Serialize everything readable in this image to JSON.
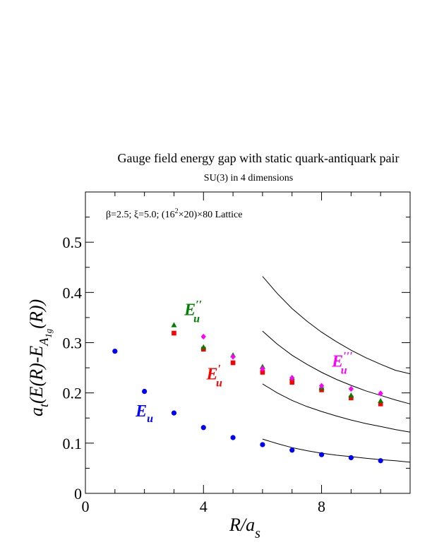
{
  "chart_data": {
    "type": "scatter",
    "title": "Gauge field energy gap with static quark-antiquark pair",
    "subtitle": "SU(3) in 4 dimensions",
    "annotation": {
      "prefix": "β=2.5;  ξ=5.0; (16",
      "sup": "2",
      "suffix": "×20)×80 Lattice"
    },
    "xlabel": {
      "main": "R/a",
      "sub": "s"
    },
    "ylabel": {
      "pre": "a",
      "pre_sub": "t",
      "mid": "(E(R)-E",
      "mid_sub": "A",
      "mid_subsub": "1g",
      "post": "(R))"
    },
    "xlim": [
      0,
      11
    ],
    "ylim": [
      0,
      0.6
    ],
    "x_ticks": [
      0,
      4,
      8
    ],
    "y_ticks": [
      0,
      0.1,
      0.2,
      0.3,
      0.4,
      0.5
    ],
    "x_tick_labels": [
      "0",
      "4",
      "8"
    ],
    "y_tick_labels": [
      "0",
      "0.1",
      "0.2",
      "0.3",
      "0.4",
      "0.5"
    ],
    "grid": false,
    "legend": "none",
    "series": [
      {
        "label": {
          "base": "E",
          "sub": "u",
          "sup": ""
        },
        "label_at": [
          1.7,
          0.153
        ],
        "color": "#0000ff",
        "marker": "circle",
        "x": [
          1,
          2,
          3,
          4,
          5,
          6,
          7,
          8,
          9,
          10
        ],
        "y": [
          0.283,
          0.203,
          0.16,
          0.131,
          0.111,
          0.097,
          0.086,
          0.077,
          0.071,
          0.065
        ]
      },
      {
        "label": {
          "base": "E",
          "sub": "u",
          "sup": "′"
        },
        "label_at": [
          4.1,
          0.227
        ],
        "color": "#ff0000",
        "marker": "square",
        "x": [
          3,
          4,
          5,
          6,
          7,
          8,
          9,
          10
        ],
        "y": [
          0.319,
          0.287,
          0.26,
          0.241,
          0.221,
          0.206,
          0.19,
          0.178
        ]
      },
      {
        "label": {
          "base": "E",
          "sub": "u",
          "sup": "′′"
        },
        "label_at": [
          3.35,
          0.355
        ],
        "color": "#008000",
        "marker": "triangle",
        "x": [
          3,
          4,
          5,
          6,
          7,
          8,
          9,
          10
        ],
        "y": [
          0.335,
          0.291,
          0.275,
          0.252,
          0.23,
          0.21,
          0.195,
          0.184
        ]
      },
      {
        "label": {
          "base": "E",
          "sub": "u",
          "sup": "′′′"
        },
        "label_at": [
          8.35,
          0.252
        ],
        "color": "#ff00ff",
        "marker": "diamond",
        "x": [
          4,
          5,
          6,
          7,
          8,
          9,
          10
        ],
        "y": [
          0.312,
          0.272,
          0.248,
          0.23,
          0.214,
          0.208,
          0.199
        ]
      }
    ],
    "curves": [
      {
        "x": [
          6,
          6.5,
          7,
          7.5,
          8,
          8.5,
          9,
          9.5,
          10,
          10.5,
          11
        ],
        "y": [
          0.108,
          0.099,
          0.091,
          0.085,
          0.08,
          0.076,
          0.073,
          0.07,
          0.067,
          0.065,
          0.062
        ]
      },
      {
        "x": [
          6,
          6.5,
          7,
          7.5,
          8,
          8.5,
          9,
          9.5,
          10,
          10.5,
          11
        ],
        "y": [
          0.218,
          0.2,
          0.185,
          0.173,
          0.163,
          0.154,
          0.146,
          0.139,
          0.133,
          0.127,
          0.122
        ]
      },
      {
        "x": [
          6,
          6.5,
          7,
          7.5,
          8,
          8.5,
          9,
          9.5,
          10,
          10.5,
          11
        ],
        "y": [
          0.323,
          0.297,
          0.275,
          0.257,
          0.241,
          0.227,
          0.215,
          0.204,
          0.195,
          0.186,
          0.178
        ]
      },
      {
        "x": [
          6,
          6.5,
          7,
          7.5,
          8,
          8.5,
          9,
          9.5,
          10,
          10.5,
          11
        ],
        "y": [
          0.432,
          0.398,
          0.368,
          0.343,
          0.321,
          0.302,
          0.285,
          0.27,
          0.257,
          0.245,
          0.238
        ]
      }
    ]
  }
}
